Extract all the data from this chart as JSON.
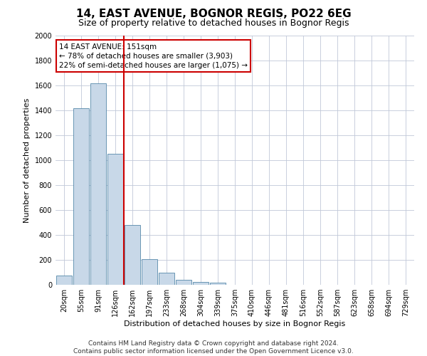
{
  "title_line1": "14, EAST AVENUE, BOGNOR REGIS, PO22 6EG",
  "title_line2": "Size of property relative to detached houses in Bognor Regis",
  "xlabel": "Distribution of detached houses by size in Bognor Regis",
  "ylabel": "Number of detached properties",
  "categories": [
    "20sqm",
    "55sqm",
    "91sqm",
    "126sqm",
    "162sqm",
    "197sqm",
    "233sqm",
    "268sqm",
    "304sqm",
    "339sqm",
    "375sqm",
    "410sqm",
    "446sqm",
    "481sqm",
    "516sqm",
    "552sqm",
    "587sqm",
    "623sqm",
    "658sqm",
    "694sqm",
    "729sqm"
  ],
  "values": [
    75,
    1420,
    1620,
    1050,
    480,
    205,
    100,
    40,
    25,
    20,
    0,
    0,
    0,
    0,
    0,
    0,
    0,
    0,
    0,
    0,
    0
  ],
  "bar_color": "#c8d8e8",
  "bar_edge_color": "#5588aa",
  "vline_x": 3.5,
  "vline_color": "#cc0000",
  "annotation_line1": "14 EAST AVENUE: 151sqm",
  "annotation_line2": "← 78% of detached houses are smaller (3,903)",
  "annotation_line3": "22% of semi-detached houses are larger (1,075) →",
  "annotation_box_color": "#ffffff",
  "annotation_box_edge": "#cc0000",
  "ylim": [
    0,
    2000
  ],
  "yticks": [
    0,
    200,
    400,
    600,
    800,
    1000,
    1200,
    1400,
    1600,
    1800,
    2000
  ],
  "footer_line1": "Contains HM Land Registry data © Crown copyright and database right 2024.",
  "footer_line2": "Contains public sector information licensed under the Open Government Licence v3.0.",
  "bg_color": "#ffffff",
  "grid_color": "#c0c8d8",
  "title_fontsize": 11,
  "subtitle_fontsize": 9,
  "axis_label_fontsize": 8,
  "tick_fontsize": 7,
  "annotation_fontsize": 7.5,
  "footer_fontsize": 6.5
}
